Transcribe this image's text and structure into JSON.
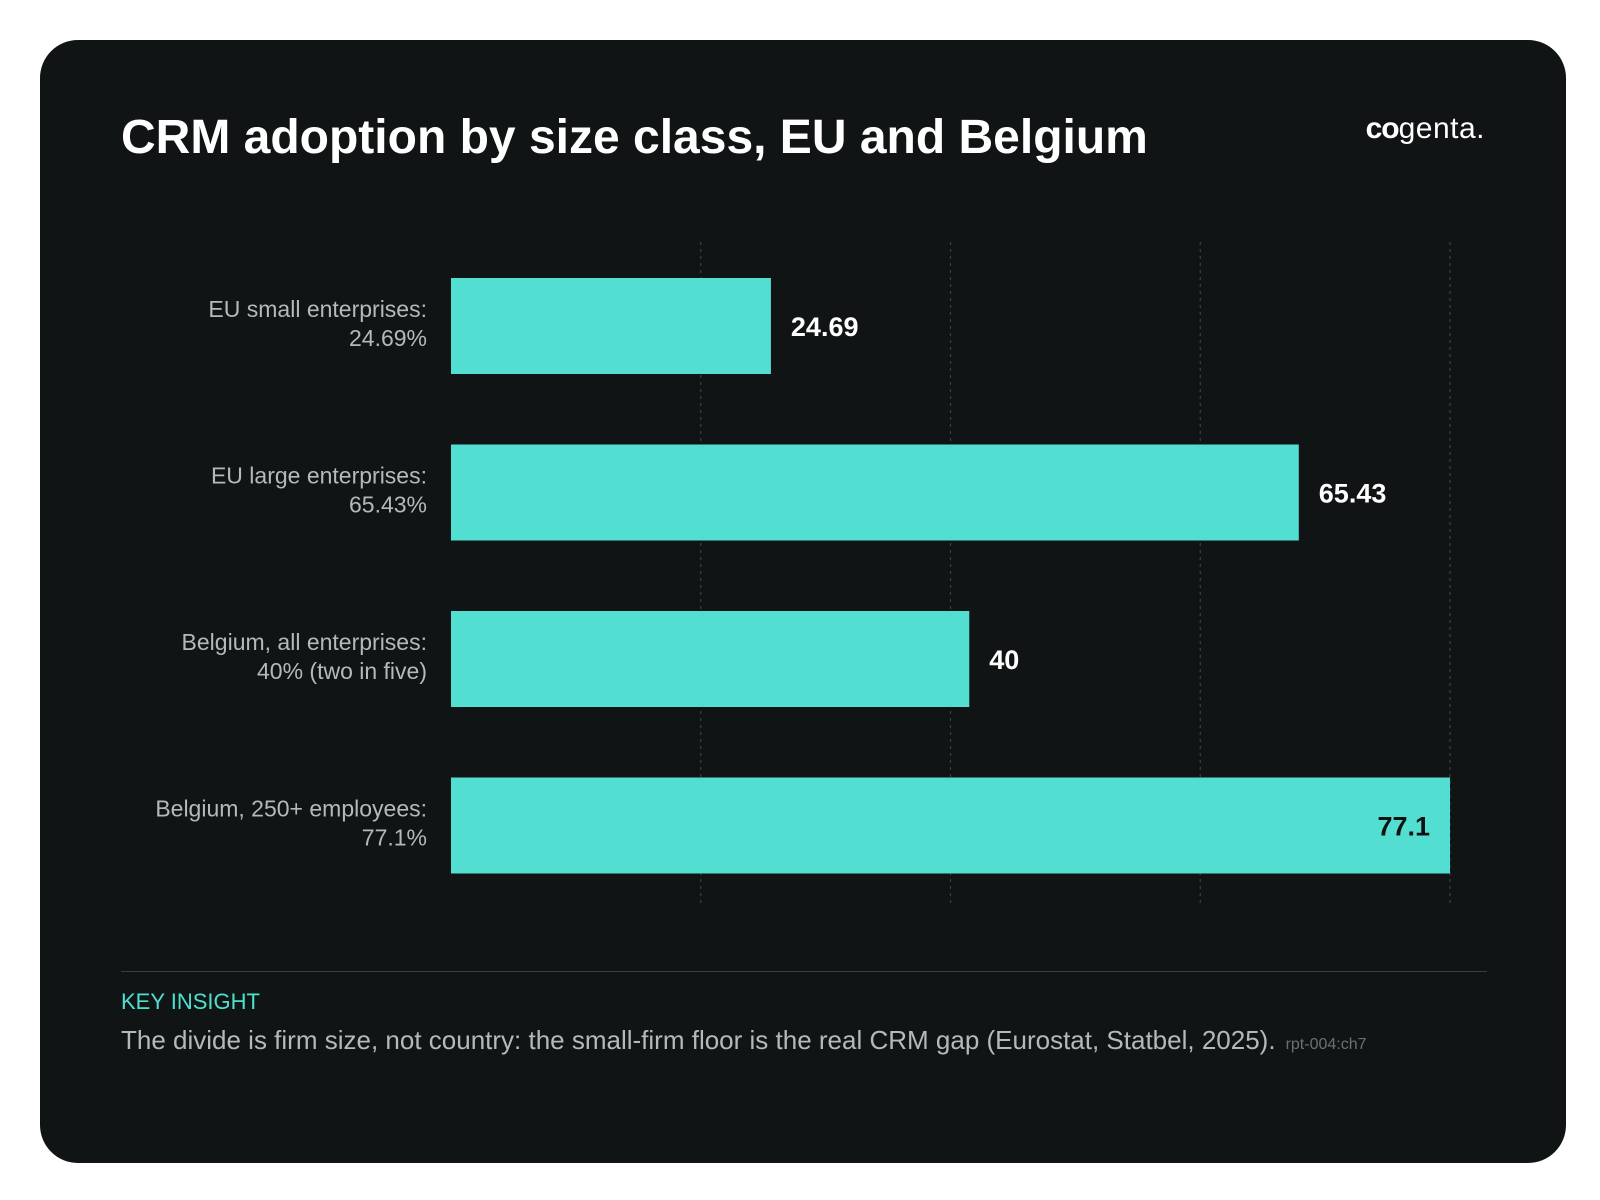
{
  "header": {
    "title": "CRM adoption by size class, EU and Belgium",
    "logo_text": "cogenta."
  },
  "chart_data": {
    "type": "bar",
    "orientation": "horizontal",
    "title": "CRM adoption by size class, EU and Belgium",
    "categories": [
      [
        "EU small enterprises:",
        "24.69%"
      ],
      [
        "EU large enterprises:",
        "65.43%"
      ],
      [
        "Belgium, all enterprises:",
        "40% (two in five)"
      ],
      [
        "Belgium, 250+ employees:",
        "77.1%"
      ]
    ],
    "values": [
      24.69,
      65.43,
      40,
      77.1
    ],
    "value_labels": [
      "24.69",
      "65.43",
      "40",
      "77.1"
    ],
    "xlim": [
      0,
      77.1
    ],
    "grid": "vertical dashed",
    "x_tick_labels_visible": false,
    "bar_color": "#52dfd1"
  },
  "footer": {
    "insight_label": "KEY INSIGHT",
    "insight_text": "The divide is firm size, not country: the small-firm floor is the real CRM gap (Eurostat, Statbel, 2025).",
    "reference": "rpt-004:ch7"
  },
  "colors": {
    "background": "#101415",
    "bar": "#52dfd1",
    "accent": "#4ee0cf",
    "text_primary": "#ffffff",
    "text_muted": "#b5b9bb"
  }
}
